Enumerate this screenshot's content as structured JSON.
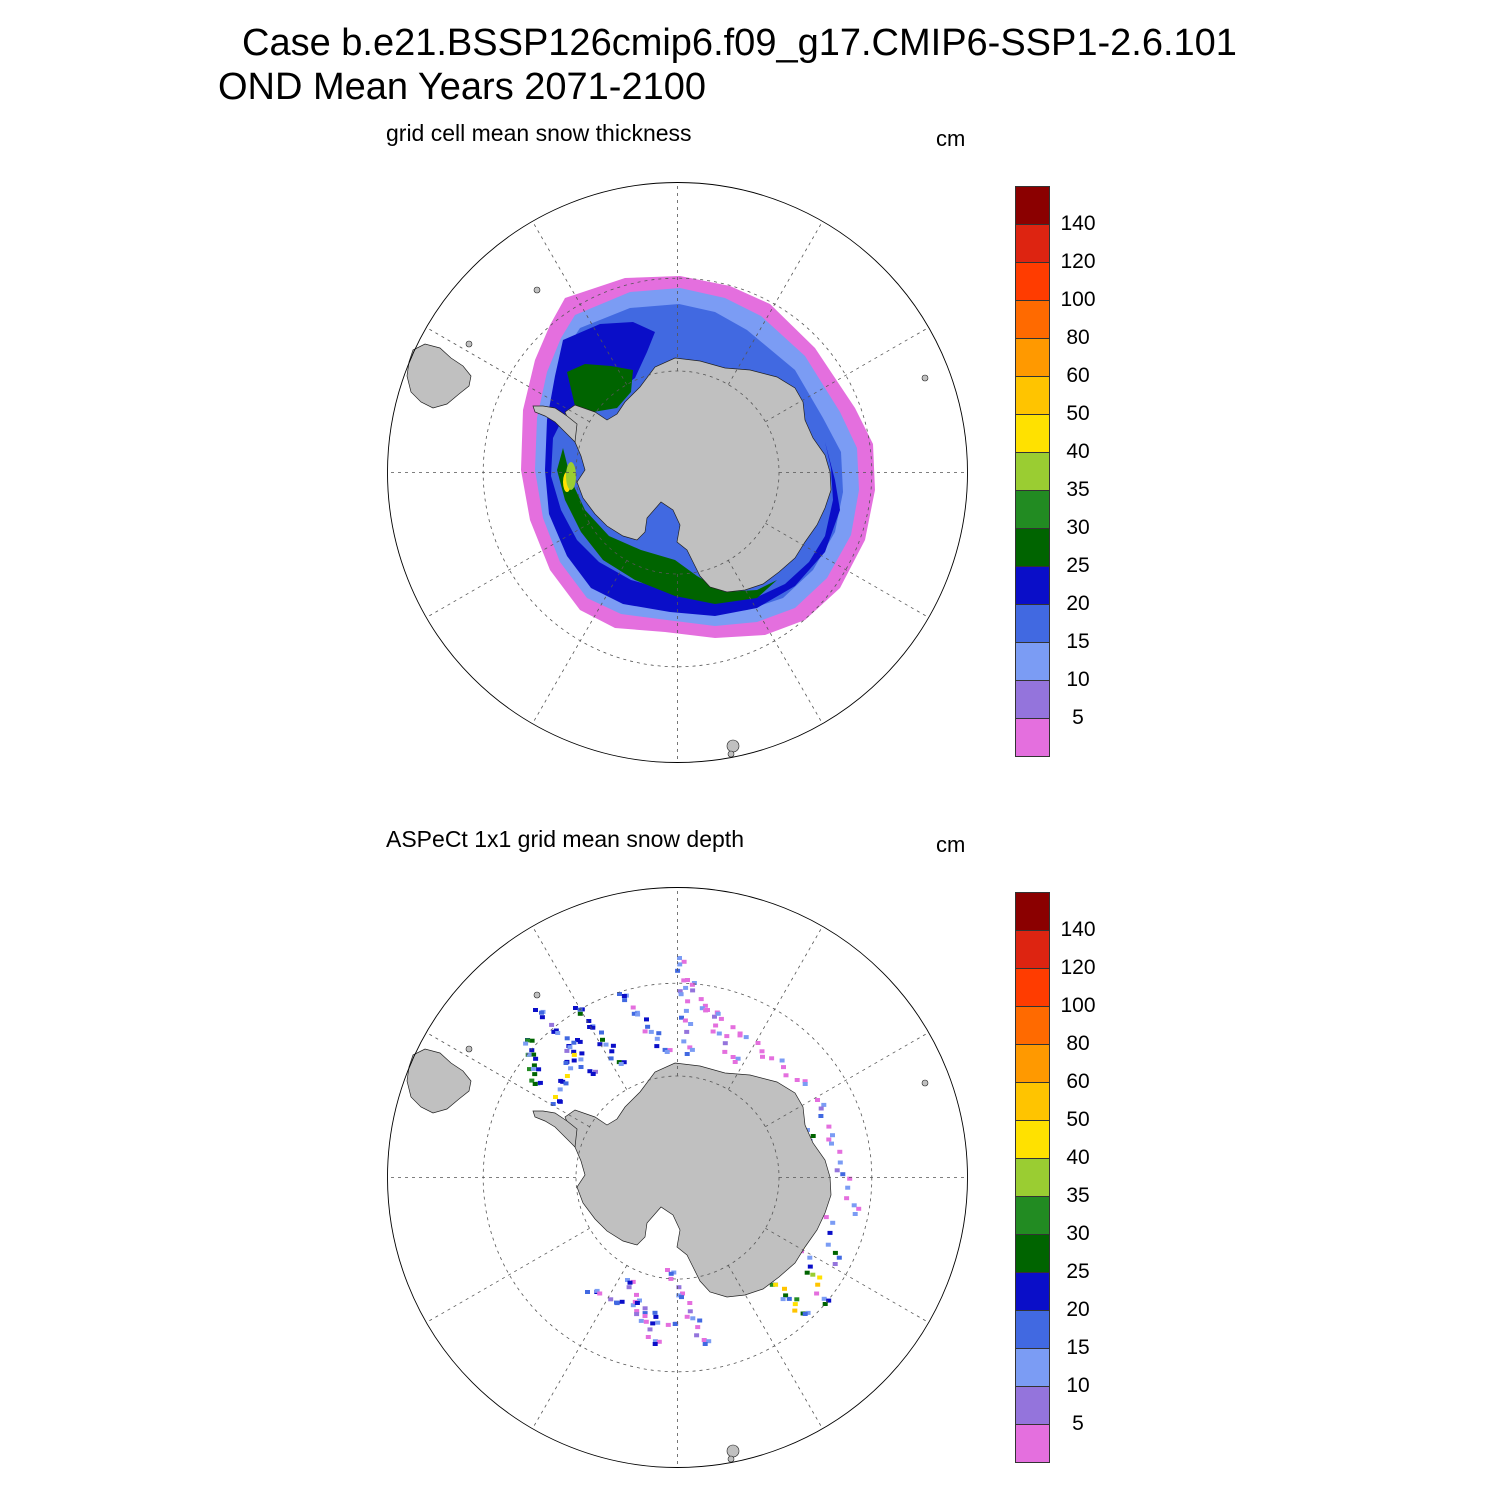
{
  "title": {
    "line1": "Case b.e21.BSSP126cmip6.f09_g17.CMIP6-SSP1-2.6.101",
    "line2": "OND Mean   Years 2071-2100"
  },
  "panels": [
    {
      "subtitle": "grid cell mean snow thickness",
      "units": "cm",
      "kind": "model"
    },
    {
      "subtitle": "ASPeCt 1x1 grid mean snow depth",
      "units": "cm",
      "kind": "obs"
    }
  ],
  "colorbar": {
    "colors": [
      "#e46fde",
      "#9474dc",
      "#7b9cf4",
      "#4169e1",
      "#0a0ec8",
      "#006400",
      "#228b22",
      "#9acd32",
      "#ffe100",
      "#ffc400",
      "#ff9900",
      "#ff6a00",
      "#ff3c00",
      "#dd2411",
      "#8b0000"
    ],
    "labels": [
      "5",
      "10",
      "15",
      "20",
      "25",
      "30",
      "35",
      "40",
      "50",
      "60",
      "80",
      "100",
      "120",
      "140"
    ]
  },
  "map": {
    "land_color": "#c0c0c0",
    "grid_color": "#555555",
    "ocean_color": "#ffffff"
  }
}
